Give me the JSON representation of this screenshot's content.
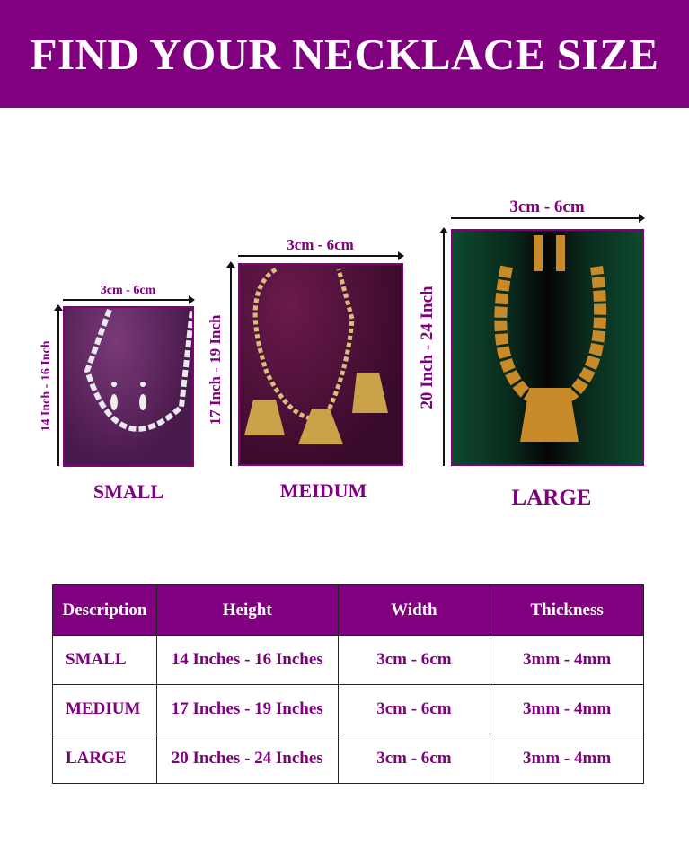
{
  "header": {
    "title": "FIND YOUR NECKLACE SIZE"
  },
  "colors": {
    "brand": "#800080",
    "text": "#800080"
  },
  "sizes": [
    {
      "label": "SMALL",
      "width": "3cm - 6cm",
      "height": "14 Inch - 16 Inch"
    },
    {
      "label": "MEIDUM",
      "width": "3cm - 6cm",
      "height": "17 Inch - 19 Inch"
    },
    {
      "label": "LARGE",
      "width": "3cm - 6cm",
      "height": "20 Inch - 24 Inch"
    }
  ],
  "table": {
    "headers": [
      "Description",
      "Height",
      "Width",
      "Thickness"
    ],
    "rows": [
      [
        "SMALL",
        "14 Inches - 16 Inches",
        "3cm - 6cm",
        "3mm - 4mm"
      ],
      [
        "MEDIUM",
        "17 Inches - 19 Inches",
        "3cm - 6cm",
        "3mm - 4mm"
      ],
      [
        "LARGE",
        "20 Inches - 24 Inches",
        "3cm - 6cm",
        "3mm - 4mm"
      ]
    ]
  }
}
